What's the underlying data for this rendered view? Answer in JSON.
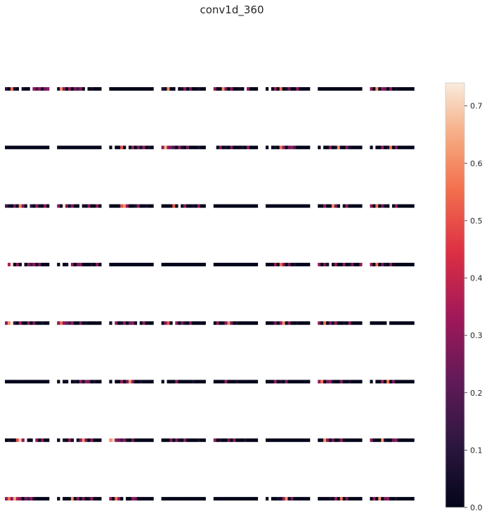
{
  "chart_data": {
    "type": "heatmap",
    "title": "conv1d_360",
    "grid": {
      "rows": 8,
      "cols": 8
    },
    "strip_length": 16,
    "colormap": "rocket",
    "colorbar": {
      "vmin": 0.0,
      "vmax": 0.74,
      "ticks": [
        0.0,
        0.1,
        0.2,
        0.3,
        0.4,
        0.5,
        0.6,
        0.7
      ],
      "tick_labels": [
        "0.0",
        "0.1",
        "0.2",
        "0.3",
        "0.4",
        "0.5",
        "0.6",
        "0.7"
      ],
      "placement": "right"
    },
    "panels": [
      [
        [
          0.1,
          0.0,
          0.55,
          0.05,
          0.0,
          -1,
          0.05,
          0.0,
          0.0,
          -1,
          0.3,
          0.15,
          0.3,
          0.05,
          0.25,
          0.3
        ],
        [
          0.0,
          0.0,
          0.0,
          0.0,
          0.0,
          0.0,
          0.0,
          0.0,
          0.0,
          0.0,
          0.0,
          0.0,
          0.0,
          0.0,
          0.0,
          0.0
        ],
        [
          0.15,
          0.05,
          0.0,
          0.25,
          0.0,
          0.58,
          0.3,
          0.0,
          -1,
          0.1,
          0.0,
          0.3,
          0.05,
          0.0,
          0.3,
          0.0
        ],
        [
          -1,
          0.35,
          0.72,
          0.0,
          0.3,
          0.0,
          -1,
          0.0,
          0.3,
          0.15,
          0.3,
          0.05,
          0.25,
          0.0,
          0.0,
          0.0
        ],
        [
          0.3,
          0.6,
          0.74,
          0.1,
          0.0,
          0.35,
          0.05,
          0.0,
          0.3,
          0.0,
          0.25,
          0.0,
          0.0,
          0.05,
          0.0,
          0.0
        ],
        [
          0.0,
          0.0,
          0.0,
          0.0,
          0.0,
          0.0,
          0.0,
          0.0,
          0.0,
          0.0,
          0.0,
          0.0,
          0.0,
          0.0,
          0.0,
          0.0
        ],
        [
          0.0,
          0.05,
          0.0,
          0.0,
          0.5,
          0.7,
          0.3,
          -1,
          0.0,
          0.0,
          -1,
          0.3,
          0.0,
          0.3,
          0.0,
          0.0
        ],
        [
          0.3,
          0.55,
          0.3,
          0.65,
          0.35,
          0.3,
          0.0,
          0.25,
          0.15,
          0.3,
          0.05,
          0.0,
          0.0,
          0.0,
          0.0,
          0.0
        ]
      ],
      [
        [
          0.05,
          0.6,
          0.3,
          0.0,
          0.3,
          0.0,
          0.25,
          0.15,
          0.3,
          0.0,
          -1,
          0.0,
          0.05,
          0.0,
          0.0,
          0.0
        ],
        [
          0.0,
          0.0,
          0.0,
          0.0,
          0.0,
          0.0,
          0.0,
          0.0,
          0.0,
          0.0,
          0.0,
          0.0,
          0.0,
          0.0,
          0.0,
          0.0
        ],
        [
          0.3,
          0.0,
          0.72,
          0.25,
          0.05,
          0.3,
          0.0,
          0.0,
          -1,
          0.05,
          0.0,
          0.3,
          0.0,
          0.0,
          0.3,
          0.0
        ],
        [
          0.0,
          -1,
          0.0,
          0.05,
          -1,
          0.3,
          0.0,
          0.25,
          0.3,
          0.0,
          0.0,
          0.0,
          0.05,
          0.0,
          0.3,
          0.0
        ],
        [
          0.3,
          0.55,
          0.3,
          0.25,
          0.15,
          0.3,
          0.0,
          0.0,
          0.25,
          0.0,
          0.05,
          0.0,
          0.0,
          0.0,
          0.0,
          0.0
        ],
        [
          0.0,
          -1,
          0.0,
          0.0,
          -1,
          0.0,
          0.05,
          0.0,
          0.3,
          0.05,
          0.3,
          0.25,
          0.0,
          0.05,
          0.0,
          0.0
        ],
        [
          0.0,
          -1,
          0.05,
          0.0,
          0.3,
          0.0,
          -1,
          0.05,
          0.3,
          0.6,
          0.25,
          0.0,
          0.3,
          0.0,
          0.0,
          0.0
        ],
        [
          0.0,
          -1,
          0.0,
          0.0,
          0.0,
          0.6,
          0.0,
          0.3,
          0.0,
          0.25,
          0.0,
          0.05,
          0.3,
          0.0,
          0.0,
          0.0
        ]
      ],
      [
        [
          0.0,
          0.0,
          0.0,
          0.0,
          0.0,
          0.0,
          0.0,
          0.0,
          0.0,
          0.0,
          0.0,
          0.0,
          0.0,
          0.0,
          0.0,
          0.0
        ],
        [
          0.0,
          -1,
          0.0,
          0.0,
          0.5,
          0.0,
          -1,
          0.0,
          0.3,
          0.0,
          0.25,
          0.05,
          0.3,
          0.0,
          0.05,
          0.0
        ],
        [
          0.0,
          0.0,
          0.0,
          0.0,
          0.5,
          0.6,
          0.3,
          0.0,
          0.0,
          0.05,
          0.3,
          0.0,
          0.0,
          0.05,
          0.0,
          0.0
        ],
        [
          0.0,
          0.0,
          0.0,
          0.0,
          0.0,
          0.0,
          0.0,
          0.0,
          0.0,
          0.0,
          0.0,
          0.0,
          0.0,
          0.0,
          0.0,
          0.0
        ],
        [
          0.05,
          -1,
          0.3,
          0.0,
          0.05,
          0.3,
          0.0,
          0.25,
          0.3,
          0.0,
          -1,
          0.0,
          0.3,
          0.0,
          0.0,
          0.0
        ],
        [
          0.0,
          -1,
          0.0,
          0.0,
          0.3,
          0.0,
          0.25,
          0.6,
          0.3,
          0.0,
          0.0,
          0.05,
          0.0,
          0.0,
          0.0,
          0.0
        ],
        [
          0.6,
          0.7,
          0.3,
          0.25,
          0.15,
          0.3,
          0.05,
          0.0,
          0.25,
          0.0,
          0.0,
          0.0,
          0.0,
          0.0,
          0.0,
          0.0
        ],
        [
          0.3,
          0.0,
          0.55,
          0.3,
          0.0,
          -1,
          0.0,
          0.0,
          0.3,
          0.25,
          0.0,
          0.0,
          0.0,
          0.0,
          0.0,
          0.0
        ]
      ],
      [
        [
          0.1,
          0.0,
          0.6,
          0.0,
          0.0,
          -1,
          0.0,
          0.05,
          0.3,
          0.0,
          0.25,
          0.0,
          0.0,
          0.05,
          0.0,
          0.0
        ],
        [
          0.3,
          0.65,
          0.3,
          0.25,
          0.15,
          0.0,
          0.3,
          0.05,
          0.0,
          0.25,
          0.0,
          0.0,
          0.0,
          0.05,
          0.0,
          0.0
        ],
        [
          0.0,
          0.0,
          0.0,
          0.0,
          0.5,
          0.0,
          -1,
          0.0,
          0.3,
          0.0,
          0.0,
          0.05,
          0.0,
          0.3,
          0.0,
          0.0
        ],
        [
          0.0,
          0.0,
          0.0,
          0.0,
          0.0,
          0.0,
          0.0,
          0.0,
          0.0,
          0.0,
          0.0,
          0.0,
          0.0,
          0.0,
          0.0,
          0.0
        ],
        [
          0.0,
          0.3,
          0.5,
          0.0,
          -1,
          0.3,
          0.0,
          0.25,
          0.05,
          0.0,
          0.3,
          0.0,
          0.0,
          0.0,
          0.0,
          0.0
        ],
        [
          0.0,
          -1,
          0.0,
          0.0,
          0.0,
          0.3,
          0.0,
          0.0,
          0.0,
          0.0,
          0.0,
          0.05,
          0.0,
          0.0,
          0.0,
          0.0
        ],
        [
          0.0,
          0.0,
          0.0,
          0.3,
          0.0,
          0.25,
          0.05,
          0.0,
          0.3,
          0.0,
          0.0,
          0.0,
          0.0,
          0.05,
          0.0,
          0.0
        ],
        [
          0.0,
          0.0,
          0.0,
          0.0,
          0.0,
          0.0,
          0.0,
          0.0,
          0.0,
          0.0,
          0.0,
          0.0,
          0.0,
          0.0,
          0.0,
          0.0
        ]
      ],
      [
        [
          0.3,
          0.0,
          0.0,
          0.6,
          0.25,
          0.0,
          0.3,
          0.0,
          0.0,
          0.05,
          0.0,
          -1,
          0.3,
          0.0,
          0.0,
          0.0
        ],
        [
          -1,
          0.0,
          0.3,
          0.0,
          0.05,
          0.0,
          0.25,
          0.0,
          0.0,
          0.0,
          0.05,
          0.0,
          0.3,
          0.0,
          0.0,
          0.0
        ],
        [
          0.0,
          0.0,
          0.0,
          0.0,
          0.0,
          0.0,
          0.0,
          0.0,
          0.0,
          0.0,
          0.0,
          0.0,
          0.0,
          0.0,
          0.0,
          0.0
        ],
        [
          0.0,
          0.0,
          0.0,
          0.0,
          0.0,
          0.0,
          0.0,
          0.0,
          0.0,
          0.0,
          0.0,
          0.0,
          0.0,
          0.0,
          0.0,
          0.0
        ],
        [
          0.0,
          0.3,
          0.0,
          0.05,
          0.3,
          0.6,
          0.25,
          0.0,
          0.05,
          0.0,
          0.0,
          0.0,
          0.0,
          0.0,
          0.0,
          0.0
        ],
        [
          0.0,
          0.0,
          0.0,
          0.0,
          0.3,
          0.0,
          0.0,
          0.0,
          0.05,
          0.0,
          0.0,
          0.0,
          0.0,
          0.0,
          0.0,
          0.0
        ],
        [
          0.3,
          0.0,
          0.05,
          0.0,
          0.0,
          0.25,
          0.0,
          0.3,
          0.0,
          0.0,
          0.0,
          0.05,
          0.0,
          0.0,
          0.0,
          0.0
        ],
        [
          0.0,
          0.0,
          0.0,
          0.0,
          0.0,
          0.0,
          0.0,
          0.0,
          0.0,
          0.0,
          0.0,
          0.0,
          0.0,
          0.0,
          0.0,
          0.0
        ]
      ],
      [
        [
          0.0,
          -1,
          0.0,
          0.3,
          0.0,
          0.55,
          0.0,
          0.05,
          0.25,
          0.0,
          0.0,
          0.3,
          0.0,
          0.0,
          0.0,
          0.0
        ],
        [
          0.0,
          -1,
          0.0,
          0.05,
          0.0,
          0.55,
          0.3,
          0.0,
          0.25,
          0.3,
          0.15,
          0.0,
          0.0,
          0.0,
          0.0,
          0.0
        ],
        [
          0.0,
          0.0,
          0.0,
          0.0,
          0.0,
          0.0,
          0.0,
          0.0,
          0.0,
          0.0,
          0.0,
          0.0,
          0.0,
          0.0,
          0.0,
          0.0
        ],
        [
          0.0,
          0.0,
          0.0,
          0.3,
          0.0,
          0.55,
          0.3,
          0.0,
          0.25,
          0.0,
          0.05,
          0.0,
          0.0,
          0.0,
          0.0,
          0.0
        ],
        [
          0.0,
          0.0,
          0.0,
          0.25,
          0.0,
          0.3,
          0.6,
          0.0,
          0.3,
          0.0,
          0.0,
          0.05,
          0.0,
          0.0,
          0.0,
          0.0
        ],
        [
          0.0,
          0.0,
          0.0,
          0.3,
          0.0,
          0.05,
          0.0,
          0.25,
          0.0,
          0.0,
          0.0,
          0.0,
          0.0,
          0.0,
          0.0,
          0.0
        ],
        [
          0.0,
          0.0,
          0.0,
          0.0,
          0.0,
          0.0,
          0.0,
          0.0,
          0.0,
          0.0,
          0.0,
          0.0,
          0.0,
          0.0,
          0.0,
          0.0
        ],
        [
          0.0,
          -1,
          0.0,
          0.0,
          0.05,
          0.0,
          0.3,
          0.6,
          0.0,
          0.25,
          0.0,
          0.0,
          0.0,
          0.0,
          0.0,
          0.0
        ]
      ],
      [
        [
          0.0,
          0.0,
          0.0,
          0.0,
          0.0,
          0.0,
          0.0,
          0.0,
          0.0,
          0.0,
          0.0,
          0.0,
          0.0,
          0.0,
          0.0,
          0.0
        ],
        [
          0.0,
          -1,
          0.0,
          0.0,
          0.3,
          0.0,
          0.05,
          0.6,
          0.0,
          0.0,
          0.25,
          0.05,
          0.0,
          0.0,
          0.0,
          0.0
        ],
        [
          0.0,
          0.0,
          0.3,
          0.0,
          0.0,
          0.6,
          0.25,
          0.0,
          -1,
          0.0,
          0.3,
          0.0,
          0.0,
          0.0,
          0.0,
          0.0
        ],
        [
          0.3,
          0.0,
          0.25,
          0.05,
          -1,
          0.0,
          0.3,
          0.0,
          0.0,
          0.3,
          0.0,
          0.05,
          0.25,
          0.0,
          0.0,
          0.3
        ],
        [
          0.3,
          0.0,
          0.55,
          0.0,
          0.25,
          0.05,
          0.3,
          0.0,
          0.0,
          0.05,
          0.0,
          0.3,
          0.0,
          0.0,
          0.0,
          0.0
        ],
        [
          0.3,
          0.55,
          0.0,
          0.25,
          0.3,
          0.05,
          0.0,
          0.0,
          0.25,
          0.0,
          0.0,
          0.05,
          0.0,
          0.0,
          0.0,
          0.0
        ],
        [
          0.0,
          0.0,
          0.6,
          0.3,
          0.0,
          0.25,
          0.0,
          0.05,
          0.3,
          0.0,
          0.0,
          0.0,
          0.0,
          0.0,
          0.0,
          0.0
        ],
        [
          0.0,
          0.0,
          0.0,
          0.0,
          0.05,
          0.0,
          0.3,
          0.0,
          0.55,
          0.0,
          0.25,
          0.0,
          0.0,
          0.0,
          0.0,
          0.0
        ]
      ],
      [
        [
          0.3,
          0.0,
          0.6,
          0.05,
          0.3,
          0.25,
          0.0,
          0.3,
          0.0,
          0.05,
          0.0,
          0.0,
          0.0,
          0.0,
          0.0,
          0.0
        ],
        [
          0.0,
          -1,
          0.0,
          0.0,
          0.3,
          0.0,
          0.05,
          0.55,
          0.0,
          0.25,
          0.0,
          0.0,
          0.0,
          0.0,
          0.0,
          0.0
        ],
        [
          0.3,
          0.0,
          0.55,
          0.0,
          0.25,
          0.05,
          0.0,
          -1,
          0.0,
          0.3,
          0.0,
          0.0,
          0.0,
          0.0,
          0.0,
          0.0
        ],
        [
          0.3,
          0.0,
          0.55,
          0.0,
          0.25,
          0.05,
          0.0,
          0.3,
          0.0,
          0.0,
          0.0,
          0.0,
          0.0,
          0.0,
          0.0,
          0.0
        ],
        [
          0.0,
          0.0,
          0.0,
          0.0,
          0.0,
          0.0,
          -1,
          0.0,
          0.0,
          0.0,
          0.0,
          0.0,
          0.0,
          0.0,
          0.0,
          0.0
        ],
        [
          0.0,
          -1,
          0.0,
          0.0,
          0.3,
          0.0,
          0.55,
          0.0,
          0.25,
          0.0,
          0.0,
          0.0,
          0.0,
          0.0,
          0.0,
          0.0
        ],
        [
          0.3,
          0.0,
          0.0,
          0.0,
          0.6,
          0.05,
          0.0,
          0.0,
          0.25,
          0.3,
          0.0,
          0.0,
          0.0,
          0.0,
          0.0,
          0.0
        ],
        [
          0.0,
          0.3,
          0.0,
          0.6,
          0.0,
          0.25,
          0.3,
          0.0,
          0.0,
          0.05,
          0.0,
          0.0,
          0.0,
          0.0,
          0.0,
          0.0
        ]
      ]
    ]
  }
}
